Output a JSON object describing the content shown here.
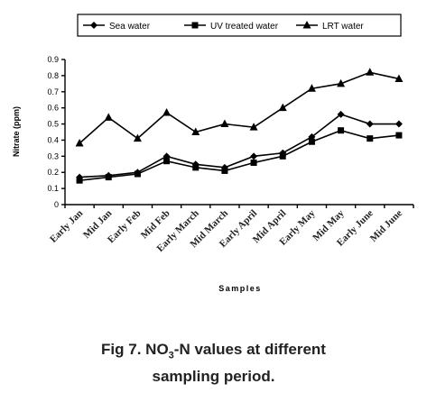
{
  "chart_data": {
    "type": "line",
    "categories": [
      "Early Jan",
      "Mid Jan",
      "Early Feb",
      "Mid Feb",
      "Early March",
      "Mid March",
      "Early April",
      "Mid April",
      "Early May",
      "Mid May",
      "Early June",
      "Mid June"
    ],
    "series": [
      {
        "name": "Sea water",
        "marker": "diamond",
        "values": [
          0.17,
          0.18,
          0.2,
          0.3,
          0.25,
          0.23,
          0.3,
          0.32,
          0.42,
          0.56,
          0.5,
          0.5
        ]
      },
      {
        "name": "UV treated water",
        "marker": "square",
        "values": [
          0.15,
          0.17,
          0.19,
          0.27,
          0.23,
          0.21,
          0.26,
          0.3,
          0.39,
          0.46,
          0.41,
          0.43
        ]
      },
      {
        "name": "LRT water",
        "marker": "triangle",
        "values": [
          0.38,
          0.54,
          0.41,
          0.57,
          0.45,
          0.5,
          0.48,
          0.6,
          0.72,
          0.75,
          0.82,
          0.78
        ]
      }
    ],
    "xlabel": "Samples",
    "ylabel": "Nitrate (ppm)",
    "ylim": [
      0,
      0.9
    ],
    "yticks": [
      "0",
      "0.1",
      "0.2",
      "0.3",
      "0.4",
      "0.5",
      "0.6",
      "0.7",
      "0.8",
      "0.9"
    ],
    "legend_position": "top",
    "grid": false
  },
  "caption": {
    "line1_prefix": "Fig 7. NO",
    "line1_sub": "3",
    "line1_suffix": "-N values at different",
    "line2": "sampling period."
  }
}
